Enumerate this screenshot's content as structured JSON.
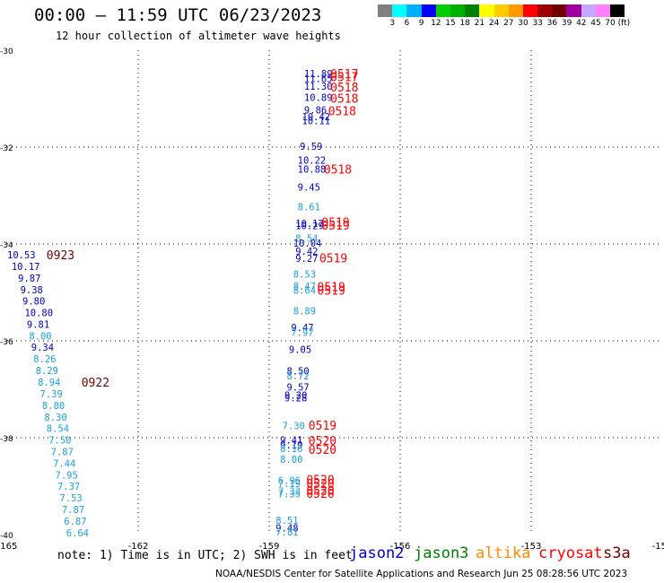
{
  "header": {
    "title": "00:00 – 11:59 UTC 06/23/2023",
    "subtitle": "12 hour collection of altimeter wave heights"
  },
  "legend": {
    "colors": [
      "#808080",
      "#00ffff",
      "#00b0ff",
      "#0000ff",
      "#00d000",
      "#00b000",
      "#008000",
      "#ffff00",
      "#ffcc00",
      "#ff9900",
      "#ff0000",
      "#a00000",
      "#700000",
      "#a000a0",
      "#c8a8ff",
      "#ff80ff",
      "#000000"
    ],
    "labels": [
      "3",
      "6",
      "9",
      "12",
      "15",
      "18",
      "21",
      "24",
      "27",
      "30",
      "33",
      "36",
      "39",
      "42",
      "45",
      "70 (ft)"
    ]
  },
  "note": "note:  1) Time is in UTC;  2) SWH is in feet",
  "satellites": [
    {
      "name": "jason2",
      "color": "#0000cc"
    },
    {
      "name": "jason3",
      "color": "#008000"
    },
    {
      "name": "altika",
      "color": "#ff8800"
    },
    {
      "name": "cryosat",
      "color": "#ff0000"
    },
    {
      "name": "s3a",
      "color": "#700000"
    }
  ],
  "footer": "NOAA/NESDIS Center for Satellite Applications and Research      Jun 25 08:28:56 UTC 2023",
  "chart_data": {
    "type": "scatter",
    "xlim": [
      -165,
      -150
    ],
    "ylim": [
      -40,
      -30
    ],
    "x_ticks": [
      "-165",
      "-162",
      "-159",
      "-156",
      "-153",
      "-150"
    ],
    "y_ticks": [
      "-30",
      "-32",
      "-34",
      "-36",
      "-38",
      "-40"
    ],
    "grid": true,
    "swh_points": [
      {
        "lon": -158.2,
        "lat": -30.48,
        "v": "11.89",
        "c": "#0000cc"
      },
      {
        "lon": -158.2,
        "lat": -30.58,
        "v": "11.65",
        "c": "#0000cc"
      },
      {
        "lon": -158.2,
        "lat": -30.74,
        "v": "11.30",
        "c": "#0000cc"
      },
      {
        "lon": -158.2,
        "lat": -30.97,
        "v": "10.89",
        "c": "#0000cc"
      },
      {
        "lon": -158.2,
        "lat": -31.23,
        "v": "9.86",
        "c": "#0000cc"
      },
      {
        "lon": -158.25,
        "lat": -31.37,
        "v": "10.42",
        "c": "#0000cc"
      },
      {
        "lon": -158.25,
        "lat": -31.45,
        "v": "10.11",
        "c": "#0000cc"
      },
      {
        "lon": -158.3,
        "lat": -31.98,
        "v": "9.59",
        "c": "#0000cc"
      },
      {
        "lon": -158.35,
        "lat": -32.27,
        "v": "10.22",
        "c": "#0000cc"
      },
      {
        "lon": -158.35,
        "lat": -32.45,
        "v": "10.88",
        "c": "#0000cc"
      },
      {
        "lon": -158.35,
        "lat": -32.82,
        "v": "9.45",
        "c": "#0000cc"
      },
      {
        "lon": -158.35,
        "lat": -33.23,
        "v": "8.61",
        "c": "#1aa0e0"
      },
      {
        "lon": -158.4,
        "lat": -33.57,
        "v": "10.17",
        "c": "#0000cc"
      },
      {
        "lon": -158.4,
        "lat": -33.62,
        "v": "10.29",
        "c": "#0000cc"
      },
      {
        "lon": -158.4,
        "lat": -33.88,
        "v": "8.54",
        "c": "#1aa0e0"
      },
      {
        "lon": -158.45,
        "lat": -33.98,
        "v": "10.04",
        "c": "#0000cc"
      },
      {
        "lon": -158.4,
        "lat": -34.15,
        "v": "9.42",
        "c": "#0000cc"
      },
      {
        "lon": -158.4,
        "lat": -34.3,
        "v": "9.27",
        "c": "#0000cc"
      },
      {
        "lon": -158.45,
        "lat": -34.62,
        "v": "8.53",
        "c": "#1aa0e0"
      },
      {
        "lon": -158.45,
        "lat": -34.87,
        "v": "8.47",
        "c": "#1aa0e0"
      },
      {
        "lon": -158.45,
        "lat": -34.95,
        "v": "8.64",
        "c": "#1aa0e0"
      },
      {
        "lon": -158.45,
        "lat": -35.38,
        "v": "8.89",
        "c": "#1aa0e0"
      },
      {
        "lon": -158.5,
        "lat": -35.72,
        "v": "9.47",
        "c": "#0000cc"
      },
      {
        "lon": -158.5,
        "lat": -35.82,
        "v": "7.97",
        "c": "#1aa0e0"
      },
      {
        "lon": -158.55,
        "lat": -36.18,
        "v": "9.05",
        "c": "#0000cc"
      },
      {
        "lon": -158.6,
        "lat": -36.62,
        "v": "8.50",
        "c": "#0000cc"
      },
      {
        "lon": -158.6,
        "lat": -36.72,
        "v": "8.72",
        "c": "#1aa0e0"
      },
      {
        "lon": -158.6,
        "lat": -36.95,
        "v": "9.57",
        "c": "#0000cc"
      },
      {
        "lon": -158.65,
        "lat": -37.18,
        "v": "9.28",
        "c": "#0000cc"
      },
      {
        "lon": -158.65,
        "lat": -37.12,
        "v": "9.20",
        "c": "#0000cc"
      },
      {
        "lon": -158.7,
        "lat": -37.75,
        "v": "7.30",
        "c": "#1aa0e0"
      },
      {
        "lon": -158.75,
        "lat": -38.05,
        "v": "9.41",
        "c": "#0000cc"
      },
      {
        "lon": -158.75,
        "lat": -38.15,
        "v": "9.19",
        "c": "#0000cc"
      },
      {
        "lon": -158.75,
        "lat": -38.22,
        "v": "8.16",
        "c": "#1aa0e0"
      },
      {
        "lon": -158.75,
        "lat": -38.44,
        "v": "8.00",
        "c": "#1aa0e0"
      },
      {
        "lon": -158.8,
        "lat": -38.88,
        "v": "6.96",
        "c": "#1aa0e0"
      },
      {
        "lon": -158.8,
        "lat": -38.94,
        "v": "7.19",
        "c": "#1aa0e0"
      },
      {
        "lon": -158.8,
        "lat": -39.1,
        "v": "7.33",
        "c": "#1aa0e0"
      },
      {
        "lon": -158.8,
        "lat": -39.16,
        "v": "7.35",
        "c": "#1aa0e0"
      },
      {
        "lon": -158.85,
        "lat": -39.7,
        "v": "8.51",
        "c": "#1aa0e0"
      },
      {
        "lon": -158.85,
        "lat": -39.86,
        "v": "9.48",
        "c": "#0000cc"
      },
      {
        "lon": -158.85,
        "lat": -39.94,
        "v": "7.81",
        "c": "#1aa0e0"
      },
      {
        "lon": -165.0,
        "lat": -34.22,
        "v": "10.53",
        "c": "#0000cc"
      },
      {
        "lon": -164.9,
        "lat": -34.46,
        "v": "10.17",
        "c": "#0000cc"
      },
      {
        "lon": -164.75,
        "lat": -34.7,
        "v": "9.87",
        "c": "#0000cc"
      },
      {
        "lon": -164.7,
        "lat": -34.94,
        "v": "9.38",
        "c": "#0000cc"
      },
      {
        "lon": -164.65,
        "lat": -35.18,
        "v": "9.80",
        "c": "#0000cc"
      },
      {
        "lon": -164.6,
        "lat": -35.42,
        "v": "10.80",
        "c": "#0000cc"
      },
      {
        "lon": -164.55,
        "lat": -35.66,
        "v": "9.81",
        "c": "#0000cc"
      },
      {
        "lon": -164.5,
        "lat": -35.9,
        "v": "8.00",
        "c": "#1aa0e0"
      },
      {
        "lon": -164.45,
        "lat": -36.13,
        "v": "9.34",
        "c": "#0000cc"
      },
      {
        "lon": -164.4,
        "lat": -36.37,
        "v": "8.26",
        "c": "#1aa0e0"
      },
      {
        "lon": -164.35,
        "lat": -36.61,
        "v": "8.29",
        "c": "#1aa0e0"
      },
      {
        "lon": -164.3,
        "lat": -36.85,
        "v": "8.94",
        "c": "#1aa0e0"
      },
      {
        "lon": -164.25,
        "lat": -37.09,
        "v": "7.39",
        "c": "#1aa0e0"
      },
      {
        "lon": -164.2,
        "lat": -37.33,
        "v": "8.80",
        "c": "#1aa0e0"
      },
      {
        "lon": -164.15,
        "lat": -37.57,
        "v": "8.30",
        "c": "#1aa0e0"
      },
      {
        "lon": -164.1,
        "lat": -37.81,
        "v": "8.54",
        "c": "#1aa0e0"
      },
      {
        "lon": -164.05,
        "lat": -38.05,
        "v": "7.50",
        "c": "#1aa0e0"
      },
      {
        "lon": -164.0,
        "lat": -38.29,
        "v": "7.87",
        "c": "#1aa0e0"
      },
      {
        "lon": -163.95,
        "lat": -38.53,
        "v": "7.44",
        "c": "#1aa0e0"
      },
      {
        "lon": -163.9,
        "lat": -38.77,
        "v": "7.95",
        "c": "#1aa0e0"
      },
      {
        "lon": -163.85,
        "lat": -39.0,
        "v": "7.37",
        "c": "#1aa0e0"
      },
      {
        "lon": -163.8,
        "lat": -39.24,
        "v": "7.53",
        "c": "#1aa0e0"
      },
      {
        "lon": -163.75,
        "lat": -39.48,
        "v": "7.87",
        "c": "#1aa0e0"
      },
      {
        "lon": -163.7,
        "lat": -39.72,
        "v": "6.87",
        "c": "#1aa0e0"
      },
      {
        "lon": -163.65,
        "lat": -39.96,
        "v": "6.64",
        "c": "#1aa0e0"
      }
    ],
    "time_labels": [
      {
        "lon": -157.6,
        "lat": -30.48,
        "t": "0517",
        "c": "#ff0000"
      },
      {
        "lon": -157.6,
        "lat": -30.55,
        "t": "0517",
        "c": "#ff0000"
      },
      {
        "lon": -157.6,
        "lat": -30.76,
        "t": "0518",
        "c": "#ff0000"
      },
      {
        "lon": -157.6,
        "lat": -30.99,
        "t": "0518",
        "c": "#ff0000"
      },
      {
        "lon": -157.65,
        "lat": -31.25,
        "t": "0518",
        "c": "#ff0000"
      },
      {
        "lon": -157.75,
        "lat": -32.45,
        "t": "0518",
        "c": "#ff0000"
      },
      {
        "lon": -157.8,
        "lat": -33.55,
        "t": "0519",
        "c": "#ff0000"
      },
      {
        "lon": -157.8,
        "lat": -33.61,
        "t": "0519",
        "c": "#ff0000"
      },
      {
        "lon": -157.85,
        "lat": -34.29,
        "t": "0519",
        "c": "#ff0000"
      },
      {
        "lon": -157.9,
        "lat": -34.88,
        "t": "0519",
        "c": "#ff0000"
      },
      {
        "lon": -157.9,
        "lat": -34.95,
        "t": "0519",
        "c": "#ff0000"
      },
      {
        "lon": -158.1,
        "lat": -37.74,
        "t": "0519",
        "c": "#ff0000"
      },
      {
        "lon": -158.1,
        "lat": -38.06,
        "t": "0520",
        "c": "#ff0000"
      },
      {
        "lon": -158.1,
        "lat": -38.24,
        "t": "0520",
        "c": "#ff0000"
      },
      {
        "lon": -158.15,
        "lat": -38.86,
        "t": "0520",
        "c": "#ff0000"
      },
      {
        "lon": -158.15,
        "lat": -38.94,
        "t": "0520",
        "c": "#ff0000"
      },
      {
        "lon": -158.15,
        "lat": -39.08,
        "t": "0520",
        "c": "#ff0000"
      },
      {
        "lon": -158.15,
        "lat": -39.15,
        "t": "0520",
        "c": "#ff0000"
      },
      {
        "lon": -164.1,
        "lat": -34.22,
        "t": "0923",
        "c": "#700000"
      },
      {
        "lon": -163.3,
        "lat": -36.85,
        "t": "0922",
        "c": "#700000"
      }
    ]
  }
}
